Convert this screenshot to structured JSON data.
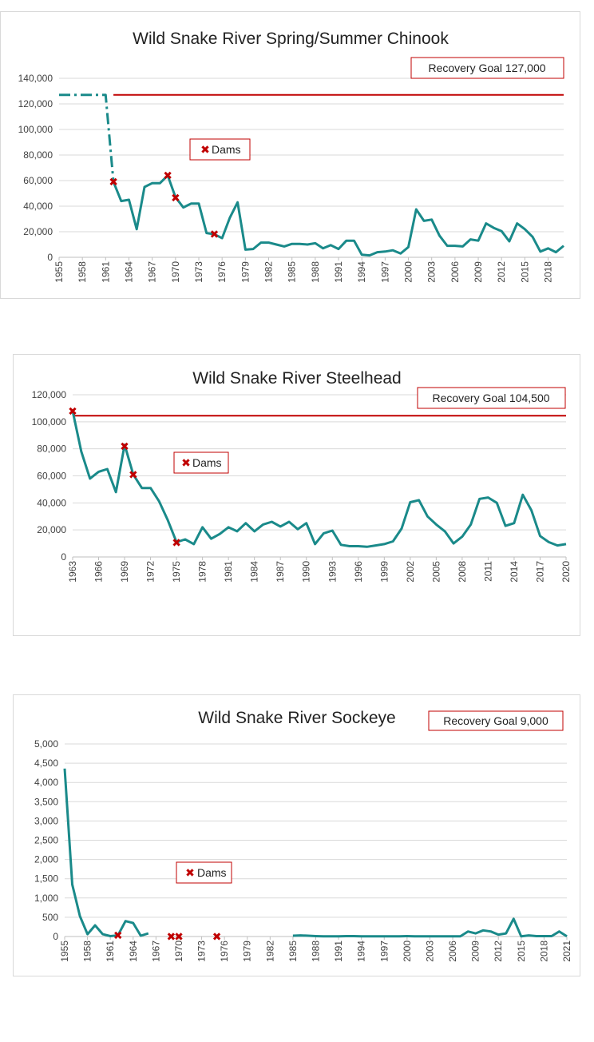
{
  "colors": {
    "line": "#1a8a8a",
    "goal": "#c00000",
    "marker": "#c00000",
    "grid": "#d9d9d9",
    "axis": "#bfbfbf"
  },
  "chart_data": [
    {
      "type": "line",
      "title": "Wild Snake River Spring/Summer Chinook",
      "xlabel": "",
      "ylabel": "",
      "x_range": [
        1955,
        2020
      ],
      "ylim": [
        0,
        140000
      ],
      "y_ticks": [
        0,
        20000,
        40000,
        60000,
        80000,
        100000,
        120000,
        140000
      ],
      "y_tick_labels": [
        "0",
        "20,000",
        "40,000",
        "60,000",
        "80,000",
        "100,000",
        "120,000",
        "140,000"
      ],
      "x_tick_labels": [
        "1955",
        "1958",
        "1961",
        "1964",
        "1967",
        "1970",
        "1973",
        "1976",
        "1979",
        "1982",
        "1985",
        "1988",
        "1991",
        "1994",
        "1997",
        "2000",
        "2003",
        "2006",
        "2009",
        "2012",
        "2015",
        "2018"
      ],
      "grid": true,
      "goal": {
        "label": "Recovery Goal 127,000",
        "value": 127000
      },
      "dams_label": "Dams",
      "estimated_series": {
        "x": [
          1955,
          1961,
          1962
        ],
        "values": [
          127000,
          127000,
          59000
        ]
      },
      "series": {
        "x": [
          1962,
          1963,
          1964,
          1965,
          1966,
          1967,
          1968,
          1969,
          1970,
          1971,
          1972,
          1973,
          1974,
          1975,
          1976,
          1977,
          1978,
          1979,
          1980,
          1981,
          1982,
          1983,
          1984,
          1985,
          1986,
          1987,
          1988,
          1989,
          1990,
          1991,
          1992,
          1993,
          1994,
          1995,
          1996,
          1997,
          1998,
          1999,
          2000,
          2001,
          2002,
          2003,
          2004,
          2005,
          2006,
          2007,
          2008,
          2009,
          2010,
          2011,
          2012,
          2013,
          2014,
          2015,
          2016,
          2017,
          2018,
          2019,
          2020
        ],
        "values": [
          59000,
          44000,
          45000,
          22000,
          55000,
          58000,
          58000,
          64000,
          47000,
          39000,
          42000,
          42000,
          19000,
          18000,
          15000,
          31000,
          43000,
          6000,
          6500,
          11500,
          11500,
          10000,
          8500,
          10500,
          10500,
          10000,
          11000,
          7000,
          9500,
          6500,
          13000,
          13000,
          2000,
          1500,
          4000,
          4500,
          5500,
          3000,
          8000,
          37500,
          28500,
          29500,
          17000,
          9000,
          9000,
          8500,
          14000,
          13000,
          26500,
          23000,
          20500,
          12500,
          26500,
          22000,
          16000,
          4500,
          7000,
          4000,
          9000
        ]
      },
      "dams": [
        {
          "x": 1962,
          "y": 59000
        },
        {
          "x": 1969,
          "y": 64000
        },
        {
          "x": 1970,
          "y": 46500
        },
        {
          "x": 1975,
          "y": 18000
        }
      ]
    },
    {
      "type": "line",
      "title": "Wild Snake River Steelhead",
      "xlabel": "",
      "ylabel": "",
      "x_range": [
        1963,
        2020
      ],
      "ylim": [
        0,
        120000
      ],
      "y_ticks": [
        0,
        20000,
        40000,
        60000,
        80000,
        100000,
        120000
      ],
      "y_tick_labels": [
        "0",
        "20,000",
        "40,000",
        "60,000",
        "80,000",
        "100,000",
        "120,000"
      ],
      "x_tick_labels": [
        "1963",
        "1966",
        "1969",
        "1972",
        "1975",
        "1978",
        "1981",
        "1984",
        "1987",
        "1990",
        "1993",
        "1996",
        "1999",
        "2002",
        "2005",
        "2008",
        "2011",
        "2014",
        "2017",
        "2020"
      ],
      "grid": true,
      "goal": {
        "label": "Recovery Goal 104,500",
        "value": 104500
      },
      "dams_label": "Dams",
      "series": {
        "x": [
          1963,
          1964,
          1965,
          1966,
          1967,
          1968,
          1969,
          1970,
          1971,
          1972,
          1973,
          1974,
          1975,
          1976,
          1977,
          1978,
          1979,
          1980,
          1981,
          1982,
          1983,
          1984,
          1985,
          1986,
          1987,
          1988,
          1989,
          1990,
          1991,
          1992,
          1993,
          1994,
          1995,
          1996,
          1997,
          1998,
          1999,
          2000,
          2001,
          2002,
          2003,
          2004,
          2005,
          2006,
          2007,
          2008,
          2009,
          2010,
          2011,
          2012,
          2013,
          2014,
          2015,
          2016,
          2017,
          2018,
          2019,
          2020
        ],
        "values": [
          108000,
          78000,
          58000,
          63000,
          65000,
          48000,
          83000,
          61000,
          51000,
          51000,
          41000,
          27000,
          11000,
          13000,
          9500,
          22000,
          13500,
          17000,
          22000,
          19000,
          25000,
          19000,
          24000,
          26000,
          22500,
          26000,
          20500,
          25000,
          9500,
          17500,
          19500,
          9000,
          8000,
          8000,
          7500,
          8500,
          9500,
          11500,
          21000,
          40500,
          42000,
          30000,
          24000,
          19000,
          10000,
          15000,
          24000,
          43000,
          44000,
          40000,
          23000,
          25000,
          46000,
          34500,
          15500,
          11000,
          8500,
          9500
        ]
      },
      "dams": [
        {
          "x": 1963,
          "y": 108000
        },
        {
          "x": 1969,
          "y": 82000
        },
        {
          "x": 1970,
          "y": 61000
        },
        {
          "x": 1975,
          "y": 10500
        }
      ]
    },
    {
      "type": "line",
      "title": "Wild Snake River Sockeye",
      "xlabel": "",
      "ylabel": "",
      "x_range": [
        1955,
        2021
      ],
      "ylim": [
        0,
        5000
      ],
      "y_ticks": [
        0,
        500,
        1000,
        1500,
        2000,
        2500,
        3000,
        3500,
        4000,
        4500,
        5000
      ],
      "y_tick_labels": [
        "0",
        "500",
        "1,000",
        "1,500",
        "2,000",
        "2,500",
        "3,000",
        "3,500",
        "4,000",
        "4,500",
        "5,000"
      ],
      "x_tick_labels": [
        "1955",
        "1958",
        "1961",
        "1964",
        "1967",
        "1970",
        "1973",
        "1976",
        "1979",
        "1982",
        "1985",
        "1988",
        "1991",
        "1994",
        "1997",
        "2000",
        "2003",
        "2006",
        "2009",
        "2012",
        "2015",
        "2018",
        "2021"
      ],
      "grid": true,
      "goal": {
        "label": "Recovery Goal 9,000",
        "value": 9000
      },
      "dams_label": "Dams",
      "segments": [
        {
          "x": [
            1955,
            1956,
            1957,
            1958,
            1959,
            1960,
            1961,
            1962,
            1963,
            1964,
            1965,
            1966
          ],
          "values": [
            4360,
            1350,
            530,
            60,
            290,
            60,
            10,
            30,
            400,
            350,
            20,
            80
          ]
        },
        {
          "x": [
            1985,
            1986,
            1987,
            1988,
            1989,
            1990,
            1991,
            1992,
            1993,
            1994,
            1995,
            1996,
            1997,
            1998,
            1999,
            2000,
            2001,
            2002,
            2003,
            2004,
            2005,
            2006,
            2007,
            2008,
            2009,
            2010,
            2011,
            2012,
            2013,
            2014,
            2015,
            2016,
            2017,
            2018,
            2019,
            2020,
            2021
          ],
          "values": [
            20,
            30,
            20,
            10,
            5,
            5,
            5,
            10,
            10,
            5,
            5,
            5,
            5,
            5,
            5,
            10,
            5,
            5,
            5,
            5,
            5,
            5,
            5,
            130,
            80,
            160,
            130,
            50,
            80,
            460,
            5,
            30,
            10,
            10,
            10,
            130,
            5
          ]
        }
      ],
      "dams": [
        {
          "x": 1962,
          "y": 30
        },
        {
          "x": 1969,
          "y": 0
        },
        {
          "x": 1970,
          "y": 0
        },
        {
          "x": 1975,
          "y": 0
        }
      ]
    }
  ]
}
